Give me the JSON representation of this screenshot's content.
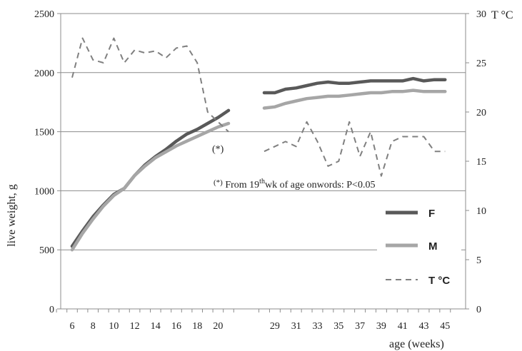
{
  "chart_data": {
    "type": "line",
    "y_left": {
      "label": "live weight, g",
      "ticks": [
        0,
        500,
        1000,
        1500,
        2000,
        2500
      ],
      "lim": [
        0,
        2500
      ]
    },
    "y_right": {
      "label": "T °C",
      "ticks": [
        0,
        5,
        10,
        15,
        20,
        25,
        30
      ],
      "lim": [
        0,
        30
      ]
    },
    "x": {
      "label": "age (weeks)",
      "ticks": [
        "6",
        "8",
        "10",
        "12",
        "14",
        "16",
        "18",
        "20",
        "29",
        "31",
        "33",
        "35",
        "37",
        "39",
        "41",
        "43",
        "45"
      ]
    },
    "series": [
      {
        "name": "F",
        "axis": "left",
        "color": "#595959",
        "segments": [
          {
            "x": [
              6,
              7,
              8,
              9,
              10,
              11,
              12,
              13,
              14,
              15,
              16,
              17,
              18,
              19,
              20,
              21
            ],
            "y": [
              530,
              660,
              780,
              880,
              970,
              1020,
              1130,
              1220,
              1290,
              1350,
              1420,
              1480,
              1520,
              1570,
              1620,
              1680
            ]
          },
          {
            "x": [
              28,
              29,
              30,
              31,
              32,
              33,
              34,
              35,
              36,
              37,
              38,
              39,
              40,
              41,
              42,
              43,
              44,
              45
            ],
            "y": [
              1830,
              1830,
              1860,
              1870,
              1890,
              1910,
              1920,
              1910,
              1910,
              1920,
              1930,
              1930,
              1930,
              1930,
              1950,
              1930,
              1940,
              1940
            ]
          }
        ]
      },
      {
        "name": "M",
        "axis": "left",
        "color": "#a6a6a6",
        "segments": [
          {
            "x": [
              6,
              7,
              8,
              9,
              10,
              11,
              12,
              13,
              14,
              15,
              16,
              17,
              18,
              19,
              20,
              21
            ],
            "y": [
              500,
              640,
              760,
              870,
              960,
              1020,
              1130,
              1210,
              1280,
              1330,
              1380,
              1420,
              1460,
              1500,
              1540,
              1570
            ]
          },
          {
            "x": [
              28,
              29,
              30,
              31,
              32,
              33,
              34,
              35,
              36,
              37,
              38,
              39,
              40,
              41,
              42,
              43,
              44,
              45
            ],
            "y": [
              1700,
              1710,
              1740,
              1760,
              1780,
              1790,
              1800,
              1800,
              1810,
              1820,
              1830,
              1830,
              1840,
              1840,
              1850,
              1840,
              1840,
              1840
            ]
          }
        ]
      },
      {
        "name": "T °C",
        "axis": "right",
        "color": "#808080",
        "dashed": true,
        "segments": [
          {
            "x": [
              6,
              7,
              8,
              9,
              10,
              11,
              12,
              13,
              14,
              15,
              16,
              17,
              18,
              19,
              20,
              21
            ],
            "y": [
              23.5,
              27.5,
              25.3,
              25,
              27.5,
              25,
              26.3,
              26,
              26.2,
              25.5,
              26.5,
              26.7,
              25,
              20,
              19,
              18
            ]
          },
          {
            "x": [
              28,
              29,
              30,
              31,
              32,
              33,
              34,
              35,
              36,
              37,
              38,
              39,
              40,
              41,
              42,
              43,
              44,
              45
            ],
            "y": [
              16,
              16.5,
              17,
              16.5,
              19,
              17,
              14.5,
              15,
              19,
              15.5,
              18,
              13.5,
              17,
              17.5,
              17.5,
              17.5,
              16,
              16
            ]
          }
        ]
      }
    ],
    "legend": {
      "placement": "bottom-right",
      "entries": [
        "F",
        "M",
        "T °C"
      ]
    },
    "annotations": {
      "star_marker": "(*)",
      "note_prefix": "(*)",
      "note_text": " From 19",
      "note_sup": "th",
      "note_tail": "wk of age onwords: P<0.05"
    },
    "grid": "horizontal"
  }
}
